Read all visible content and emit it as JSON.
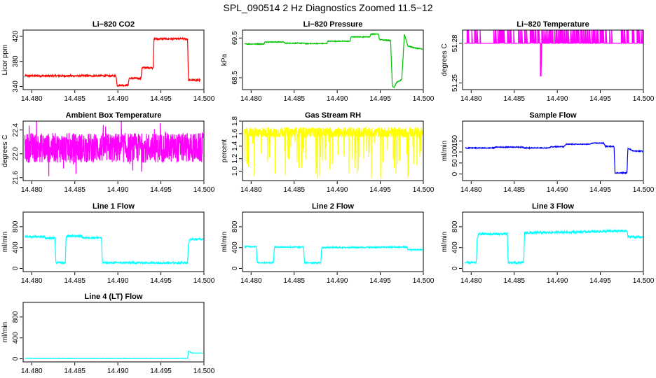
{
  "figure_title": "SPL_090514  2 Hz Diagnostics Zoomed 11.5−12",
  "chart_data": [
    {
      "id": "co2",
      "type": "line",
      "title": "Li−820 CO2",
      "ylabel": "Licor ppm",
      "color": "#ff0000",
      "xlim": [
        14.479,
        14.5
      ],
      "xticks": [
        "14.480",
        "14.485",
        "14.490",
        "14.495",
        "14.500"
      ],
      "ylim": [
        335,
        430
      ],
      "yticks": [
        "340",
        "380",
        "420"
      ],
      "ytick_values": [
        340,
        380,
        420
      ],
      "x": [
        14.479,
        14.4898,
        14.4899,
        14.4912,
        14.4913,
        14.4927,
        14.4928,
        14.4941,
        14.4942,
        14.4981,
        14.4982,
        14.4996
      ],
      "y": [
        357,
        357,
        342,
        342,
        353,
        353,
        370,
        370,
        416,
        416,
        350,
        350
      ],
      "noise": 1.5
    },
    {
      "id": "pressure",
      "type": "line",
      "title": "Li−820 Pressure",
      "ylabel": "kPa",
      "color": "#00c000",
      "xlim": [
        14.479,
        14.5
      ],
      "xticks": [
        "14.480",
        "14.485",
        "14.490",
        "14.495",
        "14.500"
      ],
      "ylim": [
        68.2,
        69.7
      ],
      "yticks": [
        "68.5",
        "69.5"
      ],
      "ytick_values": [
        68.5,
        69.5
      ],
      "x": [
        14.4792,
        14.4815,
        14.4816,
        14.4838,
        14.4839,
        14.4862,
        14.4863,
        14.4888,
        14.4889,
        14.4915,
        14.4916,
        14.4938,
        14.4939,
        14.4948,
        14.4949,
        14.4962,
        14.4964,
        14.4966,
        14.4969,
        14.4975,
        14.4978,
        14.4982,
        14.499,
        14.5
      ],
      "y": [
        69.35,
        69.35,
        69.4,
        69.4,
        69.37,
        69.37,
        69.36,
        69.36,
        69.42,
        69.42,
        69.53,
        69.53,
        69.6,
        69.6,
        69.46,
        69.44,
        68.3,
        68.25,
        68.38,
        68.45,
        69.6,
        69.3,
        69.25,
        69.22
      ],
      "noise": 0.01
    },
    {
      "id": "temperature",
      "type": "line",
      "title": "Li−820 Temperature",
      "ylabel": "degrees C",
      "color": "#ff00ff",
      "xlim": [
        14.479,
        14.5
      ],
      "xticks": [
        "14.480",
        "14.485",
        "14.490",
        "14.495",
        "14.500"
      ],
      "ylim": [
        51.245,
        51.29
      ],
      "yticks": [
        "51.25",
        "51.28"
      ],
      "ytick_values": [
        51.25,
        51.28
      ],
      "base": 51.28,
      "spike_high": 51.29,
      "dip_x": 14.4881,
      "dip_y": 51.255
    },
    {
      "id": "ambient",
      "type": "line",
      "title": "Ambient Box Temperature",
      "ylabel": "degrees C",
      "color": "#ff00ff",
      "xlim": [
        14.479,
        14.5
      ],
      "xticks": [
        "14.480",
        "14.485",
        "14.490",
        "14.495",
        "14.500"
      ],
      "ylim": [
        21.55,
        22.55
      ],
      "yticks": [
        "21.6",
        "22.0",
        "22.4"
      ],
      "ytick_values": [
        21.6,
        22.0,
        22.4
      ],
      "mean": 22.1,
      "spread": 0.25
    },
    {
      "id": "rh",
      "type": "line",
      "title": "Gas Stream RH",
      "ylabel": "percent",
      "color": "#ffff00",
      "xlim": [
        14.479,
        14.5
      ],
      "xticks": [
        "14.480",
        "14.485",
        "14.490",
        "14.495",
        "14.500"
      ],
      "ylim": [
        0.85,
        1.8
      ],
      "yticks": [
        "1.0",
        "1.2",
        "1.4",
        "1.6",
        "1.8"
      ],
      "ytick_values": [
        1.0,
        1.2,
        1.4,
        1.6,
        1.8
      ],
      "mean": 1.62,
      "spread": 0.08
    },
    {
      "id": "sample",
      "type": "line",
      "title": "Sample Flow",
      "ylabel": "ml/min",
      "color": "#0000ff",
      "xlim": [
        14.479,
        14.5
      ],
      "xticks": [
        "14.480",
        "14.485",
        "14.490",
        "14.495",
        "14.500"
      ],
      "ylim": [
        -30,
        240
      ],
      "yticks": [
        "0",
        "50",
        "100",
        "150"
      ],
      "ytick_values": [
        0,
        50,
        100,
        150
      ],
      "x": [
        14.4793,
        14.4826,
        14.4828,
        14.486,
        14.4862,
        14.489,
        14.4893,
        14.4908,
        14.491,
        14.4938,
        14.494,
        14.4954,
        14.4956,
        14.4966,
        14.4967,
        14.4981,
        14.4982,
        14.4988,
        14.5
      ],
      "y": [
        118,
        118,
        122,
        122,
        118,
        118,
        124,
        124,
        135,
        135,
        140,
        140,
        125,
        125,
        5,
        5,
        118,
        105,
        103
      ],
      "noise": 2
    },
    {
      "id": "line1",
      "type": "line",
      "title": "Line 1 Flow",
      "ylabel": "ml/min",
      "color": "#00ffff",
      "xlim": [
        14.479,
        14.5
      ],
      "xticks": [
        "14.480",
        "14.485",
        "14.490",
        "14.495",
        "14.500"
      ],
      "ylim": [
        -60,
        1080
      ],
      "yticks": [
        "0",
        "400",
        "800"
      ],
      "ytick_values": [
        0,
        400,
        800
      ],
      "x": [
        14.4792,
        14.4815,
        14.4816,
        14.4827,
        14.4828,
        14.4839,
        14.484,
        14.4858,
        14.4859,
        14.4881,
        14.4882,
        14.4981,
        14.4982,
        14.4984,
        14.4999
      ],
      "y": [
        610,
        610,
        580,
        580,
        110,
        110,
        620,
        620,
        590,
        590,
        110,
        110,
        480,
        560,
        560
      ],
      "noise": 18
    },
    {
      "id": "line2",
      "type": "line",
      "title": "Line 2 Flow",
      "ylabel": "ml/min",
      "color": "#00ffff",
      "xlim": [
        14.479,
        14.5
      ],
      "xticks": [
        "14.480",
        "14.485",
        "14.490",
        "14.495",
        "14.500"
      ],
      "ylim": [
        -60,
        1080
      ],
      "yticks": [
        "0",
        "400",
        "800"
      ],
      "ytick_values": [
        0,
        400,
        800
      ],
      "x": [
        14.4792,
        14.4806,
        14.4807,
        14.4826,
        14.4827,
        14.4861,
        14.4862,
        14.4881,
        14.4882,
        14.4981,
        14.4982,
        14.4999
      ],
      "y": [
        420,
        420,
        110,
        110,
        410,
        410,
        110,
        110,
        400,
        410,
        360,
        360
      ],
      "noise": 12
    },
    {
      "id": "line3",
      "type": "line",
      "title": "Line 3 Flow",
      "ylabel": "ml/min",
      "color": "#00ffff",
      "xlim": [
        14.479,
        14.5
      ],
      "xticks": [
        "14.480",
        "14.485",
        "14.490",
        "14.495",
        "14.500"
      ],
      "ylim": [
        -60,
        1080
      ],
      "yticks": [
        "0",
        "400",
        "800"
      ],
      "ytick_values": [
        0,
        400,
        800
      ],
      "x": [
        14.4792,
        14.4806,
        14.4807,
        14.4809,
        14.4842,
        14.4843,
        14.4861,
        14.4862,
        14.4981,
        14.4982,
        14.4999
      ],
      "y": [
        110,
        110,
        580,
        660,
        660,
        110,
        110,
        680,
        720,
        610,
        600
      ],
      "noise": 22
    },
    {
      "id": "line4",
      "type": "line",
      "title": "Line 4 (LT) Flow",
      "ylabel": "ml/min",
      "color": "#00ffff",
      "xlim": [
        14.479,
        14.5
      ],
      "xticks": [
        "14.480",
        "14.485",
        "14.490",
        "14.495",
        "14.500"
      ],
      "ylim": [
        -60,
        1080
      ],
      "yticks": [
        "0",
        "400",
        "800"
      ],
      "ytick_values": [
        0,
        400,
        800
      ],
      "x": [
        14.4792,
        14.4981,
        14.4982,
        14.4986,
        14.4999
      ],
      "y": [
        5,
        5,
        150,
        110,
        110
      ],
      "noise": 3
    }
  ]
}
